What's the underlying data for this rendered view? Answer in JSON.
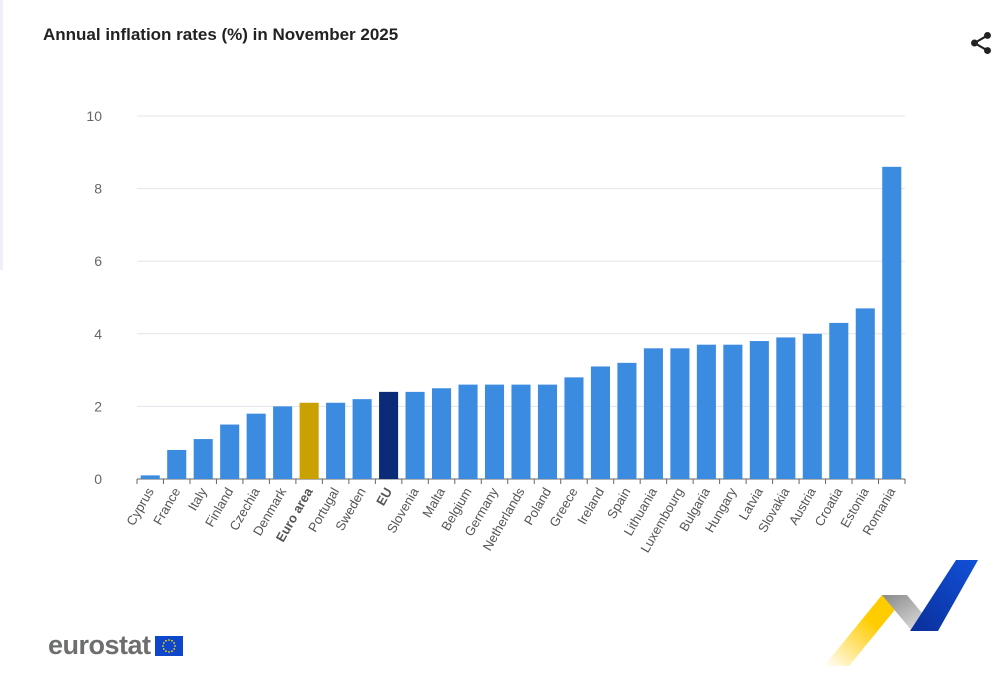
{
  "header": {
    "title": "Annual inflation rates (%) in November 2025",
    "share_icon": "share-icon"
  },
  "logo": {
    "text": "eurostat"
  },
  "colors": {
    "default": "#3b8be0",
    "euro_area": "#c9a100",
    "eu": "#0b2a78",
    "grid": "#e3e3ec"
  },
  "chart_data": {
    "type": "bar",
    "title": "Annual inflation rates (%) in November 2025",
    "xlabel": "",
    "ylabel": "",
    "ylim": [
      0,
      10
    ],
    "yticks": [
      0,
      2,
      4,
      6,
      8,
      10
    ],
    "grid": true,
    "categories": [
      "Cyprus",
      "France",
      "Italy",
      "Finland",
      "Czechia",
      "Denmark",
      "Euro area",
      "Portugal",
      "Sweden",
      "EU",
      "Slovenia",
      "Malta",
      "Belgium",
      "Germany",
      "Netherlands",
      "Poland",
      "Greece",
      "Ireland",
      "Spain",
      "Lithuania",
      "Luxembourg",
      "Bulgaria",
      "Hungary",
      "Latvia",
      "Slovakia",
      "Austria",
      "Croatia",
      "Estonia",
      "Romania"
    ],
    "values": [
      0.1,
      0.8,
      1.1,
      1.5,
      1.8,
      2.0,
      2.1,
      2.1,
      2.2,
      2.4,
      2.4,
      2.5,
      2.6,
      2.6,
      2.6,
      2.6,
      2.8,
      3.1,
      3.2,
      3.6,
      3.6,
      3.7,
      3.7,
      3.8,
      3.9,
      4.0,
      4.3,
      4.7,
      8.6
    ],
    "highlighted": {
      "Euro area": "euro_area",
      "EU": "eu"
    }
  }
}
